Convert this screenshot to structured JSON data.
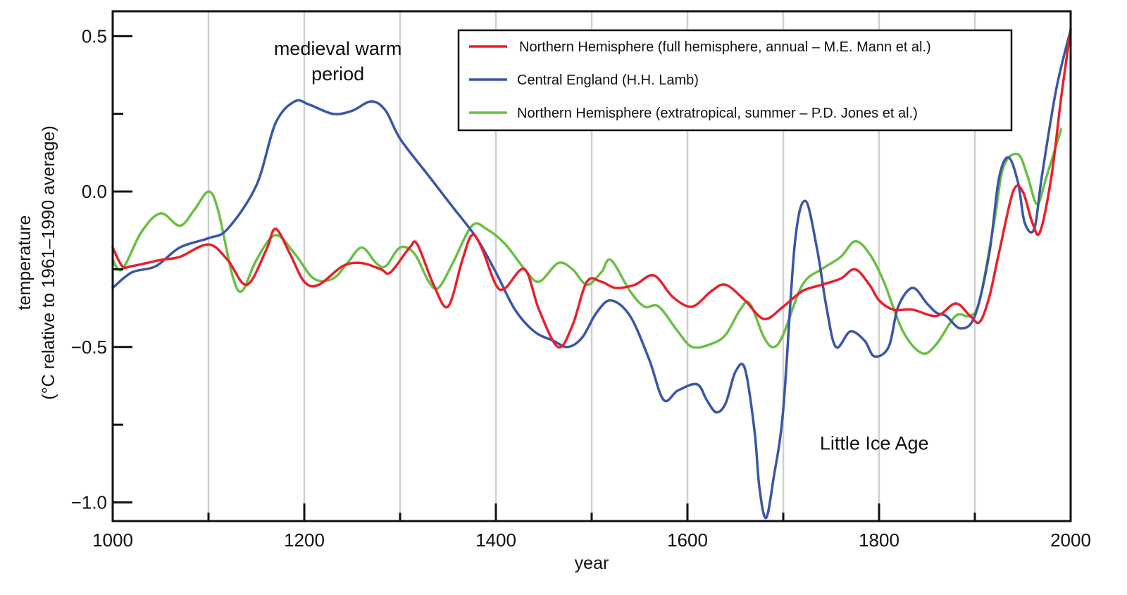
{
  "chart_data": {
    "type": "line",
    "title": "",
    "xlabel": "year",
    "ylabel_line1": "temperature",
    "ylabel_line2": "(°C relative to 1961–1990 average)",
    "xlim": [
      1000,
      2000
    ],
    "ylim": [
      -1.06,
      0.58
    ],
    "x_ticks": [
      {
        "value": 1000,
        "label": "1000"
      },
      {
        "value": 1200,
        "label": "1200"
      },
      {
        "value": 1400,
        "label": "1400"
      },
      {
        "value": 1600,
        "label": "1600"
      },
      {
        "value": 1800,
        "label": "1800"
      },
      {
        "value": 2000,
        "label": "2000"
      }
    ],
    "x_minor_ticks": [
      1100,
      1300,
      1500,
      1700,
      1900
    ],
    "vertical_gridlines": [
      1100,
      1200,
      1300,
      1400,
      1500,
      1600,
      1700,
      1800,
      1900
    ],
    "y_ticks": [
      {
        "value": 0.5,
        "label": "0.5"
      },
      {
        "value": 0.0,
        "label": "0.0"
      },
      {
        "value": -0.5,
        "label": "−0.5"
      },
      {
        "value": -1.0,
        "label": "−1.0"
      }
    ],
    "y_minor_ticks": [
      0.25,
      -0.25,
      -0.75
    ],
    "grid": "vertical only",
    "legend_position": "top-right",
    "annotations": [
      {
        "text_line1": "medieval warm",
        "text_line2": "period",
        "x": 1235,
        "y": 0.44
      },
      {
        "text_line1": "Little Ice Age",
        "text_line2": "",
        "x": 1795,
        "y": -0.83
      }
    ],
    "series": [
      {
        "name": "Northern Hemisphere (full hemisphere, annual – M.E. Mann et al.)",
        "color": "#e8202a",
        "x": [
          1000,
          1010,
          1020,
          1050,
          1070,
          1100,
          1120,
          1140,
          1160,
          1170,
          1185,
          1200,
          1215,
          1240,
          1260,
          1280,
          1290,
          1310,
          1318,
          1335,
          1350,
          1365,
          1375,
          1385,
          1400,
          1410,
          1430,
          1445,
          1465,
          1480,
          1495,
          1510,
          1525,
          1545,
          1565,
          1585,
          1605,
          1625,
          1640,
          1660,
          1680,
          1700,
          1720,
          1740,
          1760,
          1775,
          1790,
          1800,
          1815,
          1835,
          1860,
          1880,
          1895,
          1905,
          1915,
          1925,
          1940,
          1950,
          1960,
          1968,
          1980,
          1990,
          2000
        ],
        "y": [
          -0.18,
          -0.24,
          -0.24,
          -0.22,
          -0.21,
          -0.17,
          -0.22,
          -0.3,
          -0.19,
          -0.12,
          -0.2,
          -0.29,
          -0.3,
          -0.24,
          -0.23,
          -0.25,
          -0.26,
          -0.18,
          -0.17,
          -0.3,
          -0.37,
          -0.22,
          -0.14,
          -0.18,
          -0.3,
          -0.31,
          -0.25,
          -0.38,
          -0.5,
          -0.43,
          -0.29,
          -0.29,
          -0.31,
          -0.3,
          -0.27,
          -0.34,
          -0.37,
          -0.32,
          -0.3,
          -0.35,
          -0.41,
          -0.37,
          -0.32,
          -0.3,
          -0.28,
          -0.25,
          -0.3,
          -0.35,
          -0.38,
          -0.38,
          -0.4,
          -0.36,
          -0.4,
          -0.42,
          -0.34,
          -0.2,
          0.0,
          0.0,
          -0.1,
          -0.13,
          0.05,
          0.3,
          0.52
        ]
      },
      {
        "name": "Central England (H.H. Lamb)",
        "color": "#3a56a5",
        "x": [
          1000,
          1020,
          1045,
          1070,
          1100,
          1120,
          1150,
          1170,
          1190,
          1205,
          1230,
          1250,
          1270,
          1285,
          1300,
          1330,
          1355,
          1380,
          1400,
          1420,
          1440,
          1460,
          1475,
          1490,
          1505,
          1520,
          1540,
          1560,
          1575,
          1590,
          1610,
          1620,
          1630,
          1640,
          1650,
          1660,
          1670,
          1675,
          1682,
          1690,
          1700,
          1712,
          1723,
          1735,
          1745,
          1755,
          1770,
          1785,
          1795,
          1810,
          1820,
          1835,
          1850,
          1860,
          1870,
          1885,
          1900,
          1915,
          1925,
          1935,
          1945,
          1952,
          1962,
          1970,
          1985,
          2000
        ],
        "y": [
          -0.31,
          -0.26,
          -0.24,
          -0.18,
          -0.15,
          -0.12,
          0.02,
          0.22,
          0.29,
          0.28,
          0.25,
          0.26,
          0.29,
          0.26,
          0.17,
          0.05,
          -0.05,
          -0.15,
          -0.26,
          -0.38,
          -0.45,
          -0.48,
          -0.5,
          -0.47,
          -0.39,
          -0.35,
          -0.4,
          -0.54,
          -0.67,
          -0.64,
          -0.62,
          -0.67,
          -0.71,
          -0.68,
          -0.58,
          -0.57,
          -0.77,
          -0.95,
          -1.05,
          -0.92,
          -0.7,
          -0.17,
          -0.03,
          -0.18,
          -0.37,
          -0.5,
          -0.45,
          -0.48,
          -0.53,
          -0.5,
          -0.37,
          -0.31,
          -0.36,
          -0.39,
          -0.4,
          -0.44,
          -0.4,
          -0.2,
          0.04,
          0.11,
          0.03,
          -0.1,
          -0.12,
          0.05,
          0.33,
          0.52
        ]
      },
      {
        "name": "Northern Hemisphere (extratropical, summer – P.D. Jones et al.)",
        "color": "#6abf45",
        "x": [
          1000,
          1010,
          1030,
          1050,
          1070,
          1085,
          1100,
          1110,
          1125,
          1135,
          1150,
          1170,
          1190,
          1210,
          1230,
          1245,
          1260,
          1275,
          1285,
          1300,
          1315,
          1330,
          1340,
          1355,
          1375,
          1390,
          1410,
          1430,
          1445,
          1465,
          1480,
          1495,
          1510,
          1520,
          1540,
          1555,
          1570,
          1590,
          1605,
          1625,
          1640,
          1655,
          1665,
          1680,
          1690,
          1700,
          1720,
          1740,
          1760,
          1775,
          1790,
          1805,
          1825,
          1845,
          1860,
          1880,
          1895,
          1905,
          1920,
          1930,
          1945,
          1955,
          1965,
          1975,
          1990
        ],
        "y": [
          -0.22,
          -0.25,
          -0.13,
          -0.07,
          -0.11,
          -0.06,
          0.0,
          -0.06,
          -0.27,
          -0.32,
          -0.22,
          -0.14,
          -0.2,
          -0.28,
          -0.28,
          -0.23,
          -0.18,
          -0.23,
          -0.24,
          -0.18,
          -0.2,
          -0.29,
          -0.31,
          -0.23,
          -0.11,
          -0.12,
          -0.17,
          -0.25,
          -0.29,
          -0.23,
          -0.25,
          -0.3,
          -0.26,
          -0.22,
          -0.32,
          -0.37,
          -0.37,
          -0.45,
          -0.5,
          -0.49,
          -0.46,
          -0.38,
          -0.36,
          -0.47,
          -0.5,
          -0.46,
          -0.3,
          -0.25,
          -0.21,
          -0.16,
          -0.2,
          -0.29,
          -0.45,
          -0.52,
          -0.49,
          -0.4,
          -0.4,
          -0.35,
          -0.1,
          0.08,
          0.12,
          0.05,
          -0.04,
          0.05,
          0.2
        ]
      }
    ]
  }
}
